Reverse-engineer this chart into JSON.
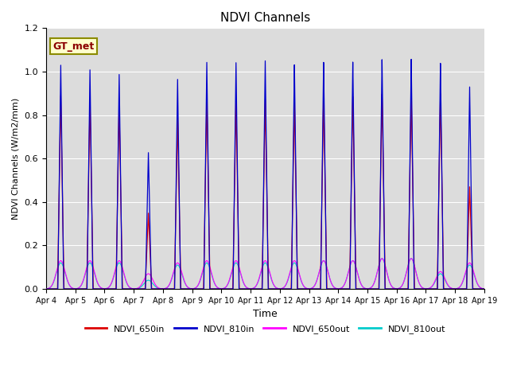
{
  "title": "NDVI Channels",
  "xlabel": "Time",
  "ylabel": "NDVI Channels (W/m2/mm)",
  "ylim": [
    0,
    1.2
  ],
  "background_color": "#dcdcdc",
  "annotation_text": "GT_met",
  "annotation_color": "#8b0000",
  "annotation_bg": "#ffffcc",
  "annotation_border": "#8b8b00",
  "colors": {
    "NDVI_650in": "#dd0000",
    "NDVI_810in": "#0000cc",
    "NDVI_650out": "#ff00ff",
    "NDVI_810out": "#00cccc"
  },
  "legend_labels": [
    "NDVI_650in",
    "NDVI_810in",
    "NDVI_650out",
    "NDVI_810out"
  ],
  "start_day": 4,
  "end_day": 19,
  "peaks_810in": [
    1.03,
    1.01,
    0.99,
    0.63,
    0.97,
    1.05,
    1.05,
    1.06,
    1.04,
    1.05,
    1.05,
    1.06,
    1.06,
    1.04,
    0.93
  ],
  "peaks_650in": [
    0.89,
    0.87,
    0.85,
    0.35,
    0.79,
    0.89,
    0.87,
    0.88,
    0.87,
    0.89,
    0.89,
    0.9,
    0.9,
    0.9,
    0.47
  ],
  "peaks_650out": [
    0.13,
    0.13,
    0.13,
    0.07,
    0.12,
    0.13,
    0.13,
    0.13,
    0.13,
    0.13,
    0.13,
    0.14,
    0.14,
    0.08,
    0.12
  ],
  "peaks_810out": [
    0.12,
    0.12,
    0.12,
    0.04,
    0.11,
    0.12,
    0.12,
    0.12,
    0.12,
    0.13,
    0.13,
    0.14,
    0.14,
    0.07,
    0.11
  ],
  "peak_times": [
    4.5,
    5.5,
    6.5,
    7.5,
    8.5,
    9.5,
    10.5,
    11.5,
    12.5,
    13.5,
    14.5,
    15.5,
    16.5,
    17.5,
    18.5
  ],
  "xticks": [
    4,
    5,
    6,
    7,
    8,
    9,
    10,
    11,
    12,
    13,
    14,
    15,
    16,
    17,
    18,
    19
  ],
  "xtick_labels": [
    "Apr 4",
    "Apr 5",
    "Apr 6",
    "Apr 7",
    "Apr 8",
    "Apr 9",
    "Apr 10",
    "Apr 11",
    "Apr 12",
    "Apr 13",
    "Apr 14",
    "Apr 15",
    "Apr 16",
    "Apr 17",
    "Apr 18",
    "Apr 19"
  ]
}
